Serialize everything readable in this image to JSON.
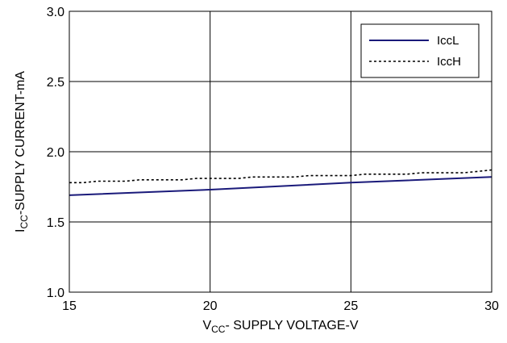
{
  "chart_data": {
    "type": "line",
    "title": "",
    "xlabel": {
      "main": "V",
      "sub": "CC",
      "rest": "- SUPPLY VOLTAGE-V"
    },
    "ylabel": {
      "main": "I",
      "sub": "CC",
      "rest": "-SUPPLY CURRENT-mA"
    },
    "xlim": [
      15,
      30
    ],
    "ylim": [
      1.0,
      3.0
    ],
    "xticks": [
      15,
      20,
      25,
      30
    ],
    "xtick_labels": [
      "15",
      "20",
      "25",
      "30"
    ],
    "yticks": [
      1.0,
      1.5,
      2.0,
      2.5,
      3.0
    ],
    "ytick_labels": [
      "1.0",
      "1.5",
      "2.0",
      "2.5",
      "3.0"
    ],
    "grid": true,
    "legend_position": "top-right",
    "series": [
      {
        "name": "IccL",
        "color": "#1a1a7a",
        "dash": "solid",
        "x": [
          15,
          20,
          25,
          30
        ],
        "y": [
          1.69,
          1.73,
          1.78,
          1.82
        ]
      },
      {
        "name": "IccH",
        "color": "#000000",
        "dash": "dotted",
        "x": [
          15,
          15.5,
          16,
          17,
          17.5,
          19,
          19.5,
          21,
          21.5,
          23,
          23.5,
          25,
          25.5,
          27,
          27.5,
          29,
          29.5,
          30
        ],
        "y": [
          1.78,
          1.78,
          1.79,
          1.79,
          1.8,
          1.8,
          1.81,
          1.81,
          1.82,
          1.82,
          1.83,
          1.83,
          1.84,
          1.84,
          1.85,
          1.85,
          1.86,
          1.87
        ]
      }
    ]
  }
}
